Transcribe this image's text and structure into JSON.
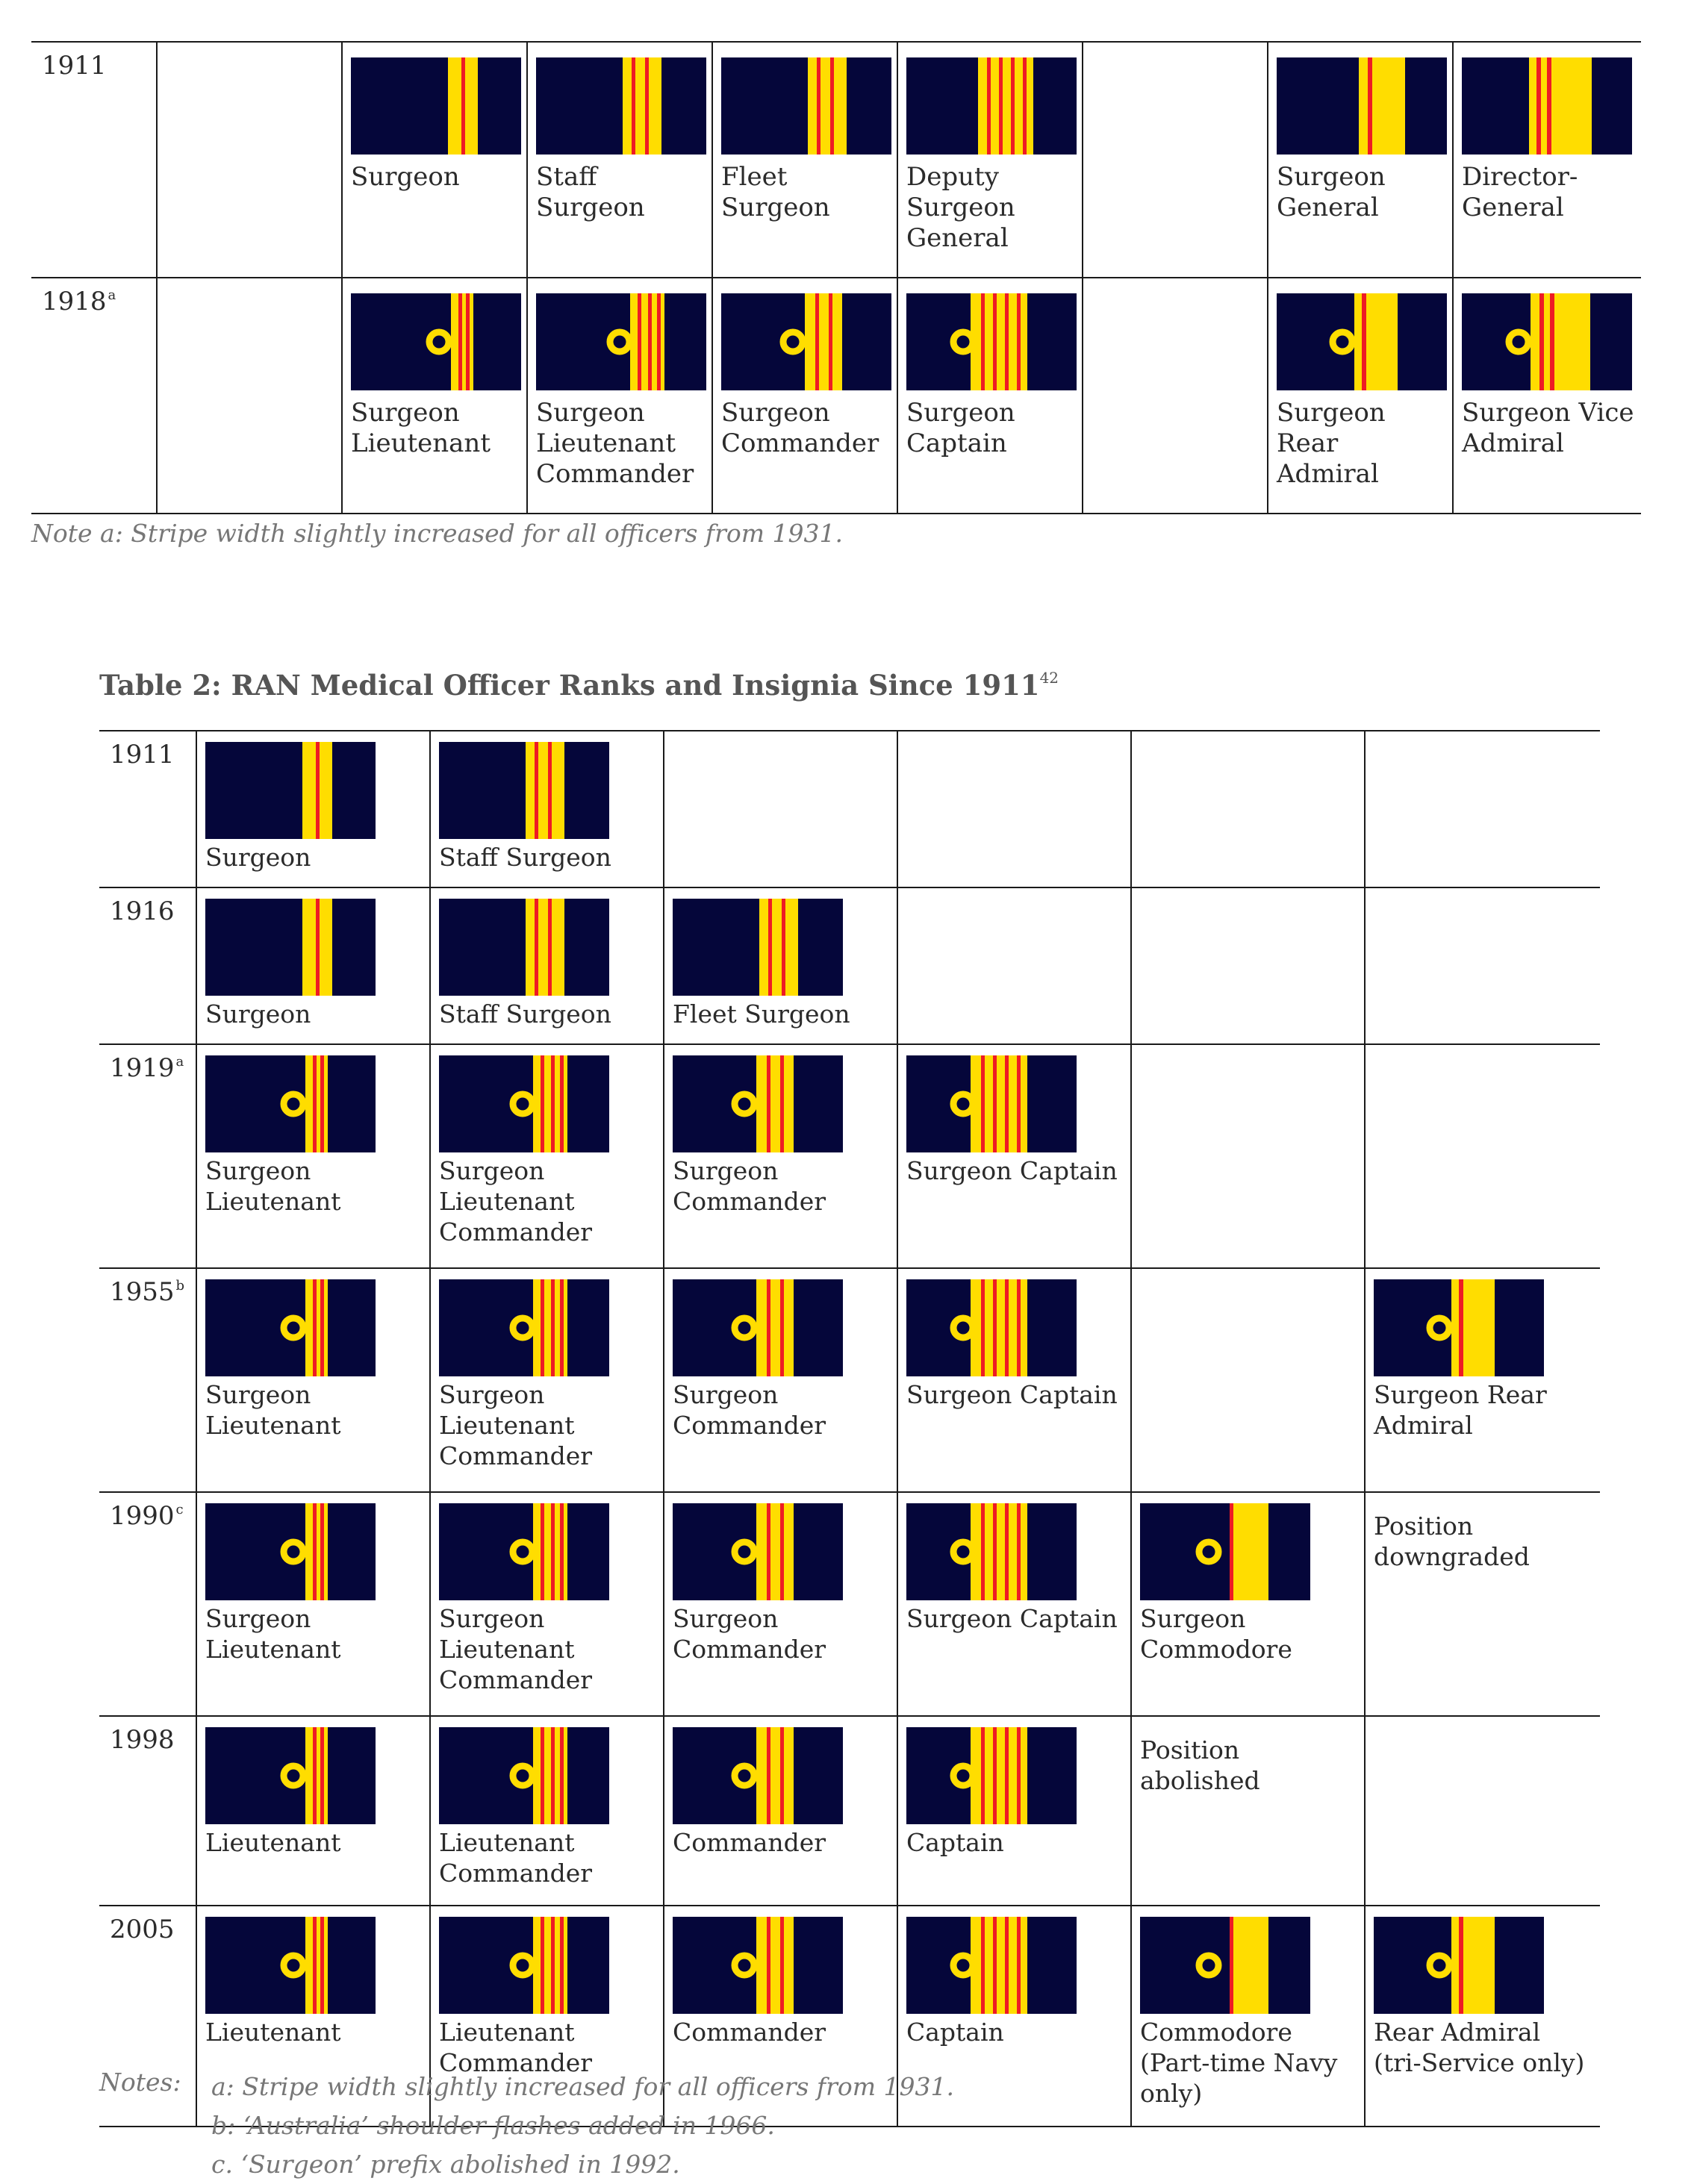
{
  "colors": {
    "navy": "#05063a",
    "gold": "#ffdd00",
    "red": "#ee1b24"
  },
  "table1": {
    "rows": [
      {
        "year": "1911",
        "sup": "",
        "cells": [
          null,
          {
            "label": "Surgeon",
            "insignia": "1911-1"
          },
          {
            "label": "Staff Surgeon",
            "insignia": "1911-2"
          },
          {
            "label": "Fleet Surgeon",
            "insignia": "1911-3"
          },
          {
            "label": "Deputy\nSurgeon\nGeneral",
            "insignia": "1911-4"
          },
          null,
          {
            "label": "Surgeon\nGeneral",
            "insignia": "1911-wide1"
          },
          {
            "label": "Director-\nGeneral",
            "insignia": "1911-wide2"
          }
        ]
      },
      {
        "year": "1918",
        "sup": "a",
        "cells": [
          null,
          {
            "label": "Surgeon\nLieutenant",
            "insignia": "c1"
          },
          {
            "label": "Surgeon\nLieutenant\nCommander",
            "insignia": "c2"
          },
          {
            "label": "Surgeon\nCommander",
            "insignia": "c3"
          },
          {
            "label": "Surgeon\nCaptain",
            "insignia": "c4"
          },
          null,
          {
            "label": "Surgeon Rear\nAdmiral",
            "insignia": "cw1"
          },
          {
            "label": "Surgeon Vice\nAdmiral",
            "insignia": "cw2"
          }
        ]
      }
    ],
    "note": "Note a: Stripe width slightly increased for all officers from 1931."
  },
  "table2": {
    "caption": "Table 2: RAN Medical Officer Ranks and Insignia Since 1911",
    "caption_sup": "42",
    "rows": [
      {
        "year": "1911",
        "sup": "",
        "cells": [
          {
            "label": "Surgeon",
            "insignia": "1911-1"
          },
          {
            "label": "Staff Surgeon",
            "insignia": "1911-2"
          },
          null,
          null,
          null,
          null
        ]
      },
      {
        "year": "1916",
        "sup": "",
        "cells": [
          {
            "label": "Surgeon",
            "insignia": "1911-1"
          },
          {
            "label": "Staff Surgeon",
            "insignia": "1911-2"
          },
          {
            "label": "Fleet Surgeon",
            "insignia": "1911-3"
          },
          null,
          null,
          null
        ]
      },
      {
        "year": "1919",
        "sup": "a",
        "cells": [
          {
            "label": "Surgeon\nLieutenant",
            "insignia": "c1"
          },
          {
            "label": "Surgeon\nLieutenant\nCommander",
            "insignia": "c2"
          },
          {
            "label": "Surgeon\nCommander",
            "insignia": "c3"
          },
          {
            "label": "Surgeon Captain",
            "insignia": "c4"
          },
          null,
          null
        ]
      },
      {
        "year": "1955",
        "sup": "b",
        "cells": [
          {
            "label": "Surgeon\nLieutenant",
            "insignia": "c1"
          },
          {
            "label": "Surgeon\nLieutenant\nCommander",
            "insignia": "c2"
          },
          {
            "label": "Surgeon\nCommander",
            "insignia": "c3"
          },
          {
            "label": "Surgeon Captain",
            "insignia": "c4"
          },
          null,
          {
            "label": "Surgeon Rear\nAdmiral",
            "insignia": "cw1"
          }
        ]
      },
      {
        "year": "1990",
        "sup": "c",
        "cells": [
          {
            "label": "Surgeon\nLieutenant",
            "insignia": "c1"
          },
          {
            "label": "Surgeon\nLieutenant\nCommander",
            "insignia": "c2"
          },
          {
            "label": "Surgeon\nCommander",
            "insignia": "c3"
          },
          {
            "label": "Surgeon Captain",
            "insignia": "c4"
          },
          {
            "label": "Surgeon\nCommodore",
            "insignia": "commodore"
          },
          {
            "text": "Position\ndowngraded"
          }
        ]
      },
      {
        "year": "1998",
        "sup": "",
        "cells": [
          {
            "label": "Lieutenant",
            "insignia": "c1"
          },
          {
            "label": "Lieutenant\nCommander",
            "insignia": "c2"
          },
          {
            "label": "Commander",
            "insignia": "c3"
          },
          {
            "label": "Captain",
            "insignia": "c4"
          },
          {
            "text": "Position\nabolished"
          },
          null
        ]
      },
      {
        "year": "2005",
        "sup": "",
        "cells": [
          {
            "label": "Lieutenant",
            "insignia": "c1"
          },
          {
            "label": "Lieutenant\nCommander",
            "insignia": "c2"
          },
          {
            "label": "Commander",
            "insignia": "c3"
          },
          {
            "label": "Captain",
            "insignia": "c4"
          },
          {
            "label": "Commodore\n(Part-time Navy\nonly)",
            "insignia": "commodore"
          },
          {
            "label": "Rear Admiral\n(tri-Service only)",
            "insignia": "cw1"
          }
        ]
      }
    ],
    "notes_label": "Notes:",
    "notes": [
      "a: Stripe width slightly increased for all officers from 1931.",
      "b: ‘Australia’ shoulder flashes added in 1966.",
      "c. ‘Surgeon’ prefix abolished in 1992."
    ]
  }
}
